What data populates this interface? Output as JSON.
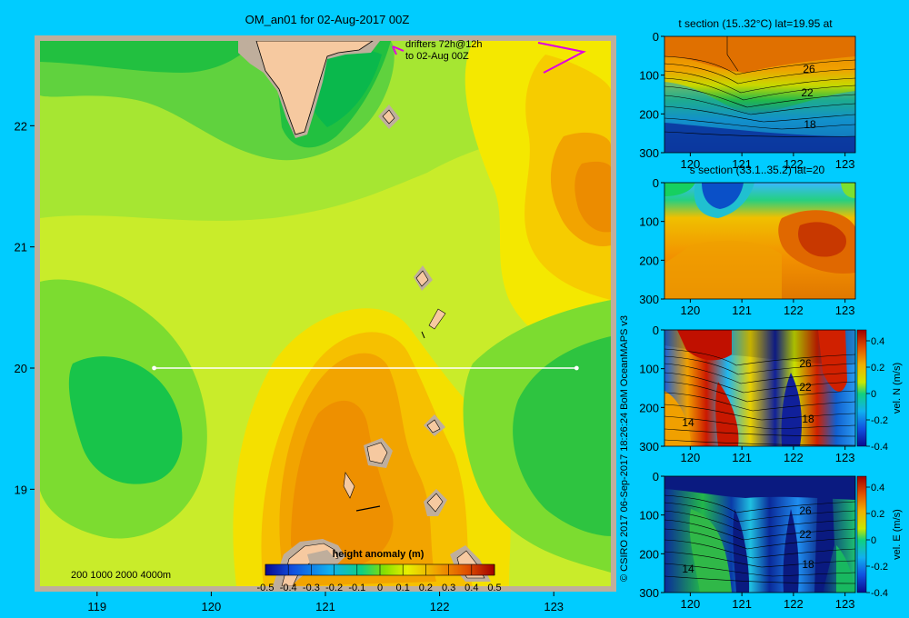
{
  "title": "OM_an01 for 02-Aug-2017 00Z",
  "credit": "© CSIRO 2017  06-Sep-2017 18:26:24 BoM OceanMAPS v3",
  "colors": {
    "background": "#00ccff",
    "land": "#f6c9a0",
    "shelf": "#bfae9c",
    "drifter": "#e000e0"
  },
  "chart_data": [
    {
      "type": "heatmap",
      "title": "OM_an01 for 02-Aug-2017 00Z",
      "x_ticks": [
        119,
        120,
        121,
        122,
        123
      ],
      "y_ticks": [
        19,
        20,
        21,
        22
      ],
      "xlim": [
        118.5,
        123.5
      ],
      "ylim": [
        18.2,
        22.7
      ],
      "section_line": {
        "lat": 20,
        "lon_start": 119.5,
        "lon_end": 123.2
      },
      "depth_scale_legend": "200  1000  2000  4000m",
      "drifters_note": [
        "drifters 72h@12h",
        "to 02-Aug 00Z"
      ],
      "colorbar": {
        "label": "height anomaly (m)",
        "ticks": [
          "-0.5",
          "-0.4",
          "-0.3",
          "-0.2",
          "-0.1",
          "0",
          "0.1",
          "0.2",
          "0.3",
          "0.4",
          "0.5"
        ],
        "range": [
          -0.5,
          0.5
        ]
      }
    },
    {
      "type": "heatmap",
      "title": "t section (15..32°C) lat=19.95 at",
      "x_ticks": [
        120,
        121,
        122,
        123
      ],
      "y_ticks": [
        0,
        100,
        200,
        300
      ],
      "contour_labels": [
        "26",
        "22",
        "18"
      ]
    },
    {
      "type": "heatmap",
      "title": "s section (33.1..35.2) lat=20",
      "x_ticks": [
        120,
        121,
        122,
        123
      ],
      "y_ticks": [
        0,
        100,
        200,
        300
      ],
      "contour_labels": []
    },
    {
      "type": "heatmap",
      "title": "",
      "x_ticks": [
        120,
        121,
        122,
        123
      ],
      "y_ticks": [
        0,
        100,
        200,
        300
      ],
      "contour_labels": [
        "26",
        "22",
        "18",
        "14"
      ],
      "colorbar": {
        "label": "vel. N (m/s)",
        "ticks": [
          "0.4",
          "0.2",
          "0",
          "-0.2",
          "-0.4"
        ],
        "range": [
          -0.4,
          0.4
        ]
      }
    },
    {
      "type": "heatmap",
      "title": "",
      "x_ticks": [
        120,
        121,
        122,
        123
      ],
      "y_ticks": [
        0,
        100,
        200,
        300
      ],
      "contour_labels": [
        "26",
        "22",
        "18",
        "14"
      ],
      "colorbar": {
        "label": "vel. E (m/s)",
        "ticks": [
          "0.4",
          "0.2",
          "0",
          "-0.2",
          "-0.4"
        ],
        "range": [
          -0.4,
          0.4
        ]
      }
    }
  ]
}
